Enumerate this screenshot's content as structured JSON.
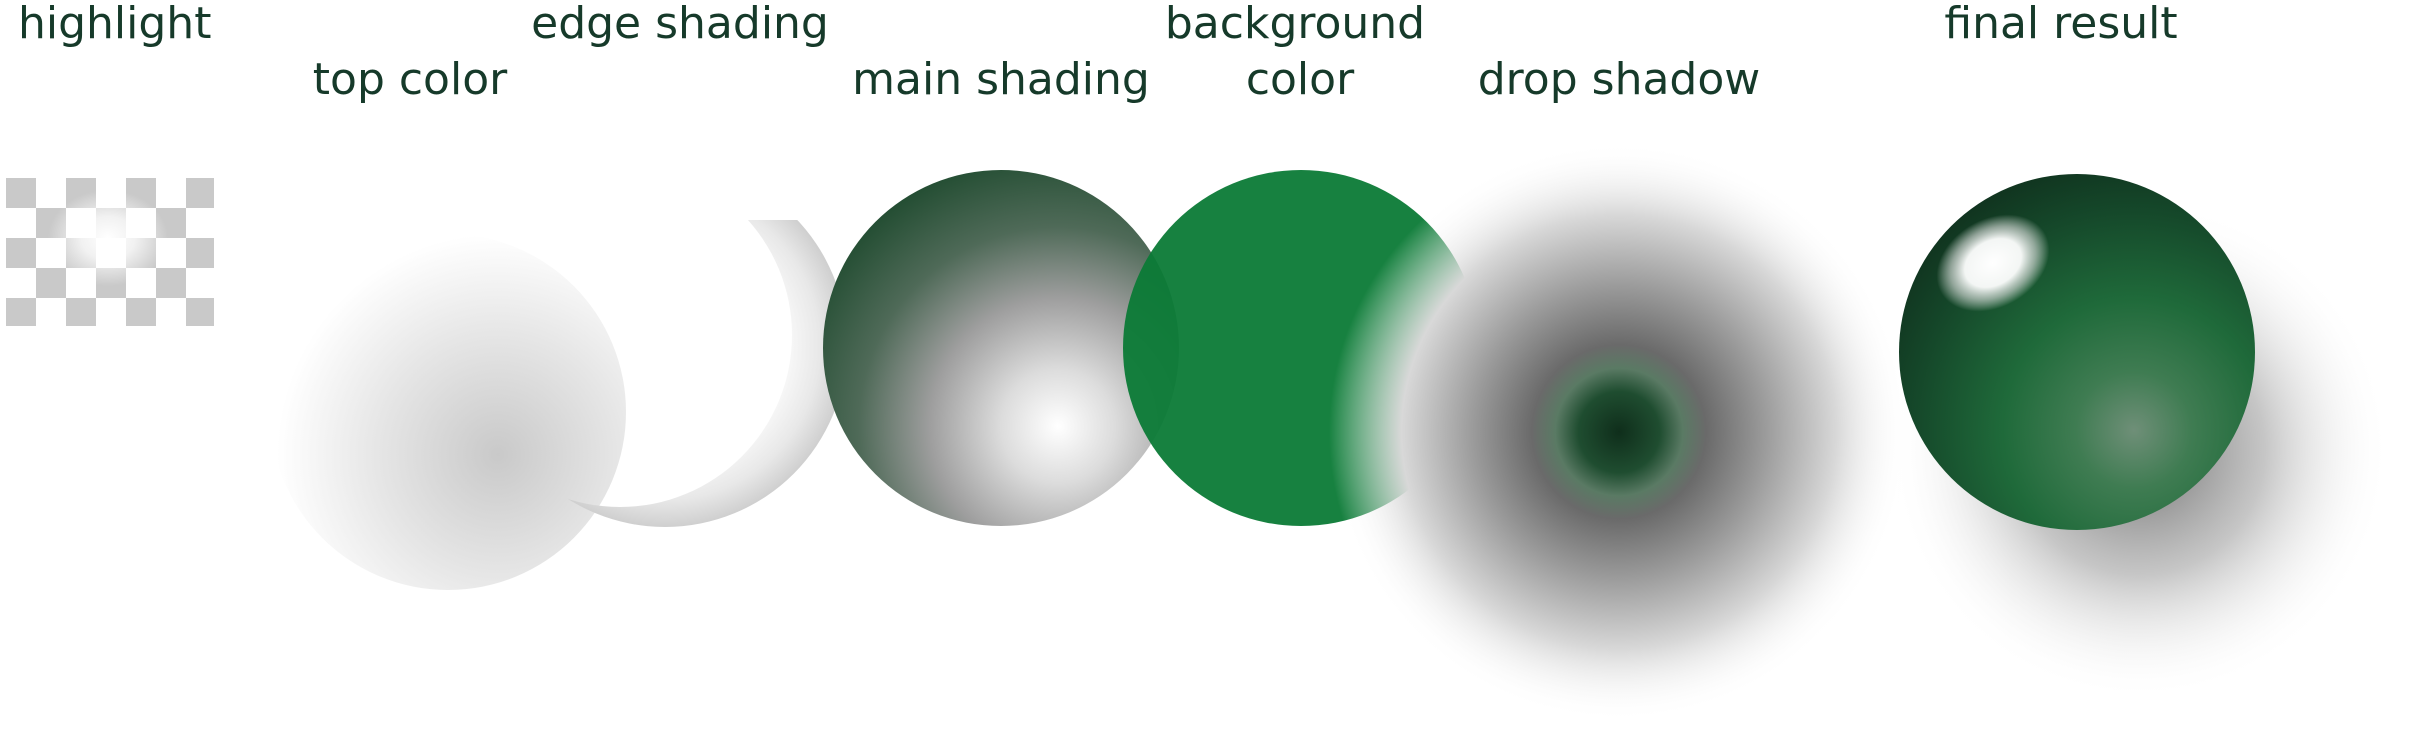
{
  "labels": {
    "highlight": "highlight",
    "top_color": "top color",
    "edge_shading": "edge shading",
    "main_shading": "main shading",
    "background_color_line1": "background",
    "background_color_line2": "color",
    "drop_shadow": "drop shadow",
    "final_result": "final result"
  },
  "colors": {
    "label_text": "#163a2a",
    "background_green": "#0b7a36",
    "dark_green": "#12331f",
    "mid_green": "#1f6b3c",
    "checker_gray": "#c8c8c8"
  },
  "layers": [
    {
      "name": "highlight",
      "icon": "checkerboard-highlight"
    },
    {
      "name": "top color",
      "icon": "radial-gray-disc"
    },
    {
      "name": "edge shading",
      "icon": "crescent-shading"
    },
    {
      "name": "main shading",
      "icon": "dark-to-light-sphere"
    },
    {
      "name": "background color",
      "icon": "solid-green-disc"
    },
    {
      "name": "drop shadow",
      "icon": "soft-shadow"
    },
    {
      "name": "final result",
      "icon": "glossy-green-sphere"
    }
  ]
}
